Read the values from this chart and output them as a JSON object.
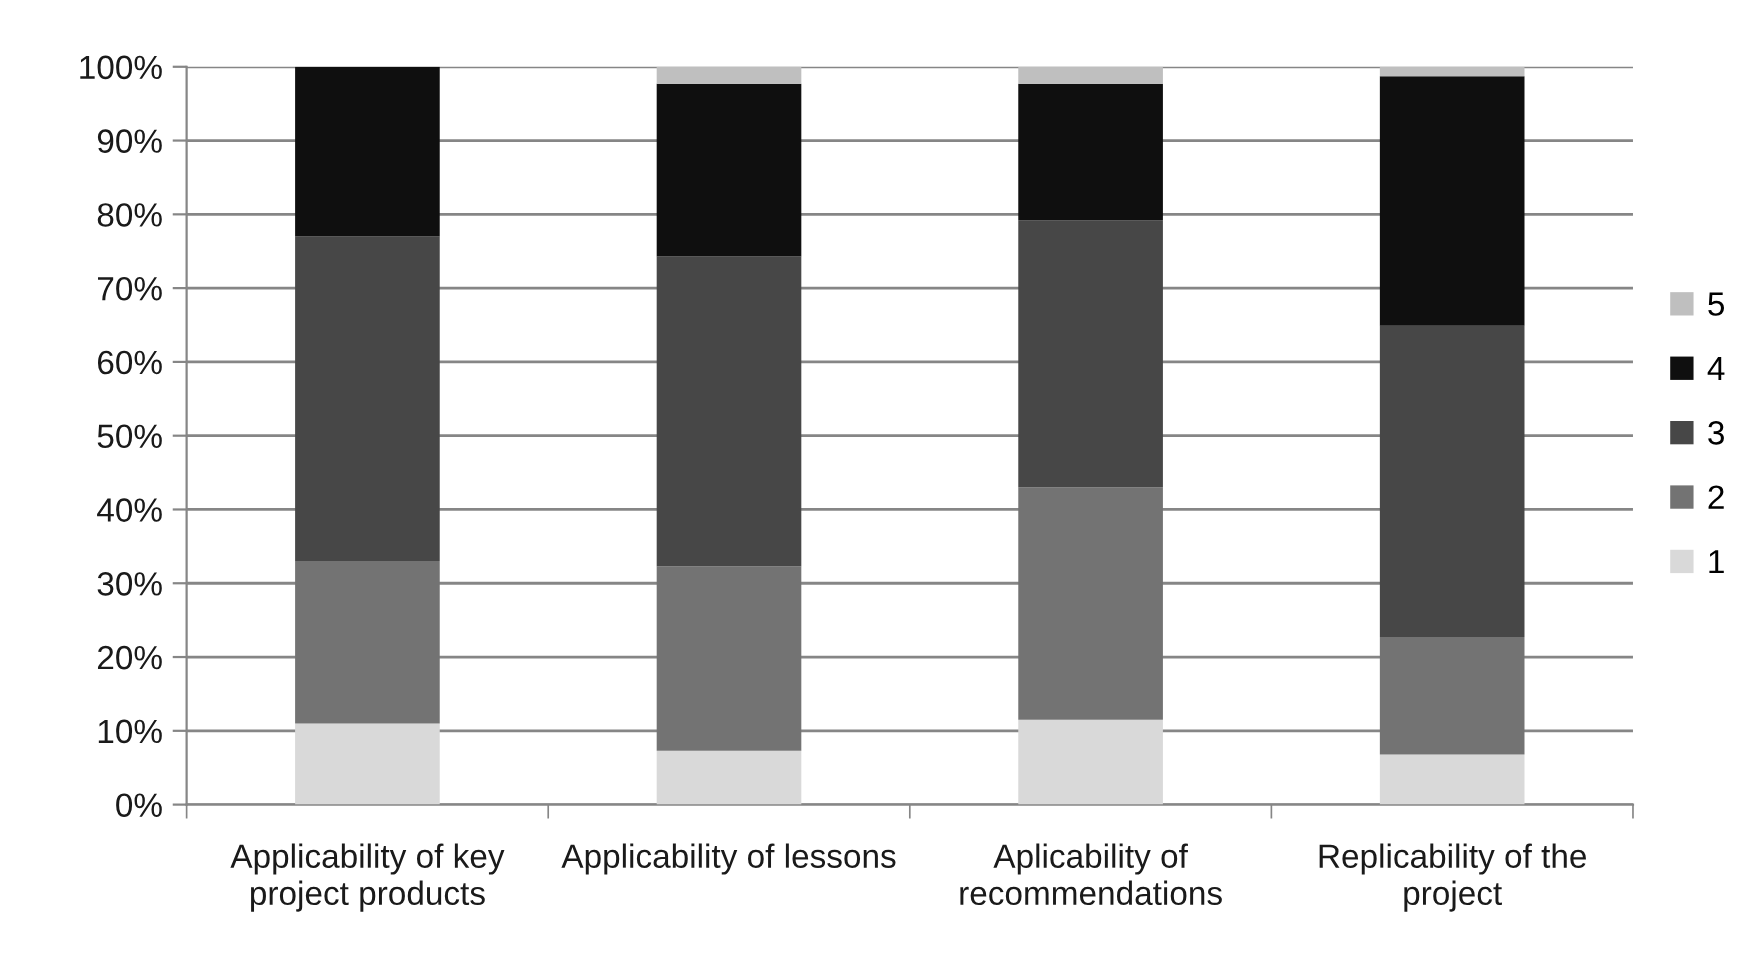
{
  "chart_data": {
    "type": "bar",
    "stacked": true,
    "categories": [
      "Applicability of key project products",
      "Applicability of lessons",
      "Aplicability of recommendations",
      "Replicability of the project"
    ],
    "series": [
      {
        "name": "1",
        "color": "#d9d9d9",
        "values": [
          11.0,
          7.3,
          11.5,
          6.8
        ]
      },
      {
        "name": "2",
        "color": "#737373",
        "values": [
          22.0,
          25.0,
          31.5,
          15.9
        ]
      },
      {
        "name": "3",
        "color": "#474747",
        "values": [
          44.0,
          42.0,
          36.2,
          42.2
        ]
      },
      {
        "name": "4",
        "color": "#0f0f0f",
        "values": [
          23.0,
          23.4,
          18.5,
          33.8
        ]
      },
      {
        "name": "5",
        "color": "#bfbfbf",
        "values": [
          0,
          2.3,
          2.3,
          1.3
        ]
      }
    ],
    "ylim": [
      0,
      100
    ],
    "yticks": [
      {
        "value": 0,
        "label": "0%"
      },
      {
        "value": 10,
        "label": "10%"
      },
      {
        "value": 20,
        "label": "20%"
      },
      {
        "value": 30,
        "label": "30%"
      },
      {
        "value": 40,
        "label": "40%"
      },
      {
        "value": 50,
        "label": "50%"
      },
      {
        "value": 60,
        "label": "60%"
      },
      {
        "value": 70,
        "label": "70%"
      },
      {
        "value": 80,
        "label": "80%"
      },
      {
        "value": 90,
        "label": "90%"
      },
      {
        "value": 100,
        "label": "100%"
      }
    ],
    "grid": "y",
    "legend": "right"
  }
}
